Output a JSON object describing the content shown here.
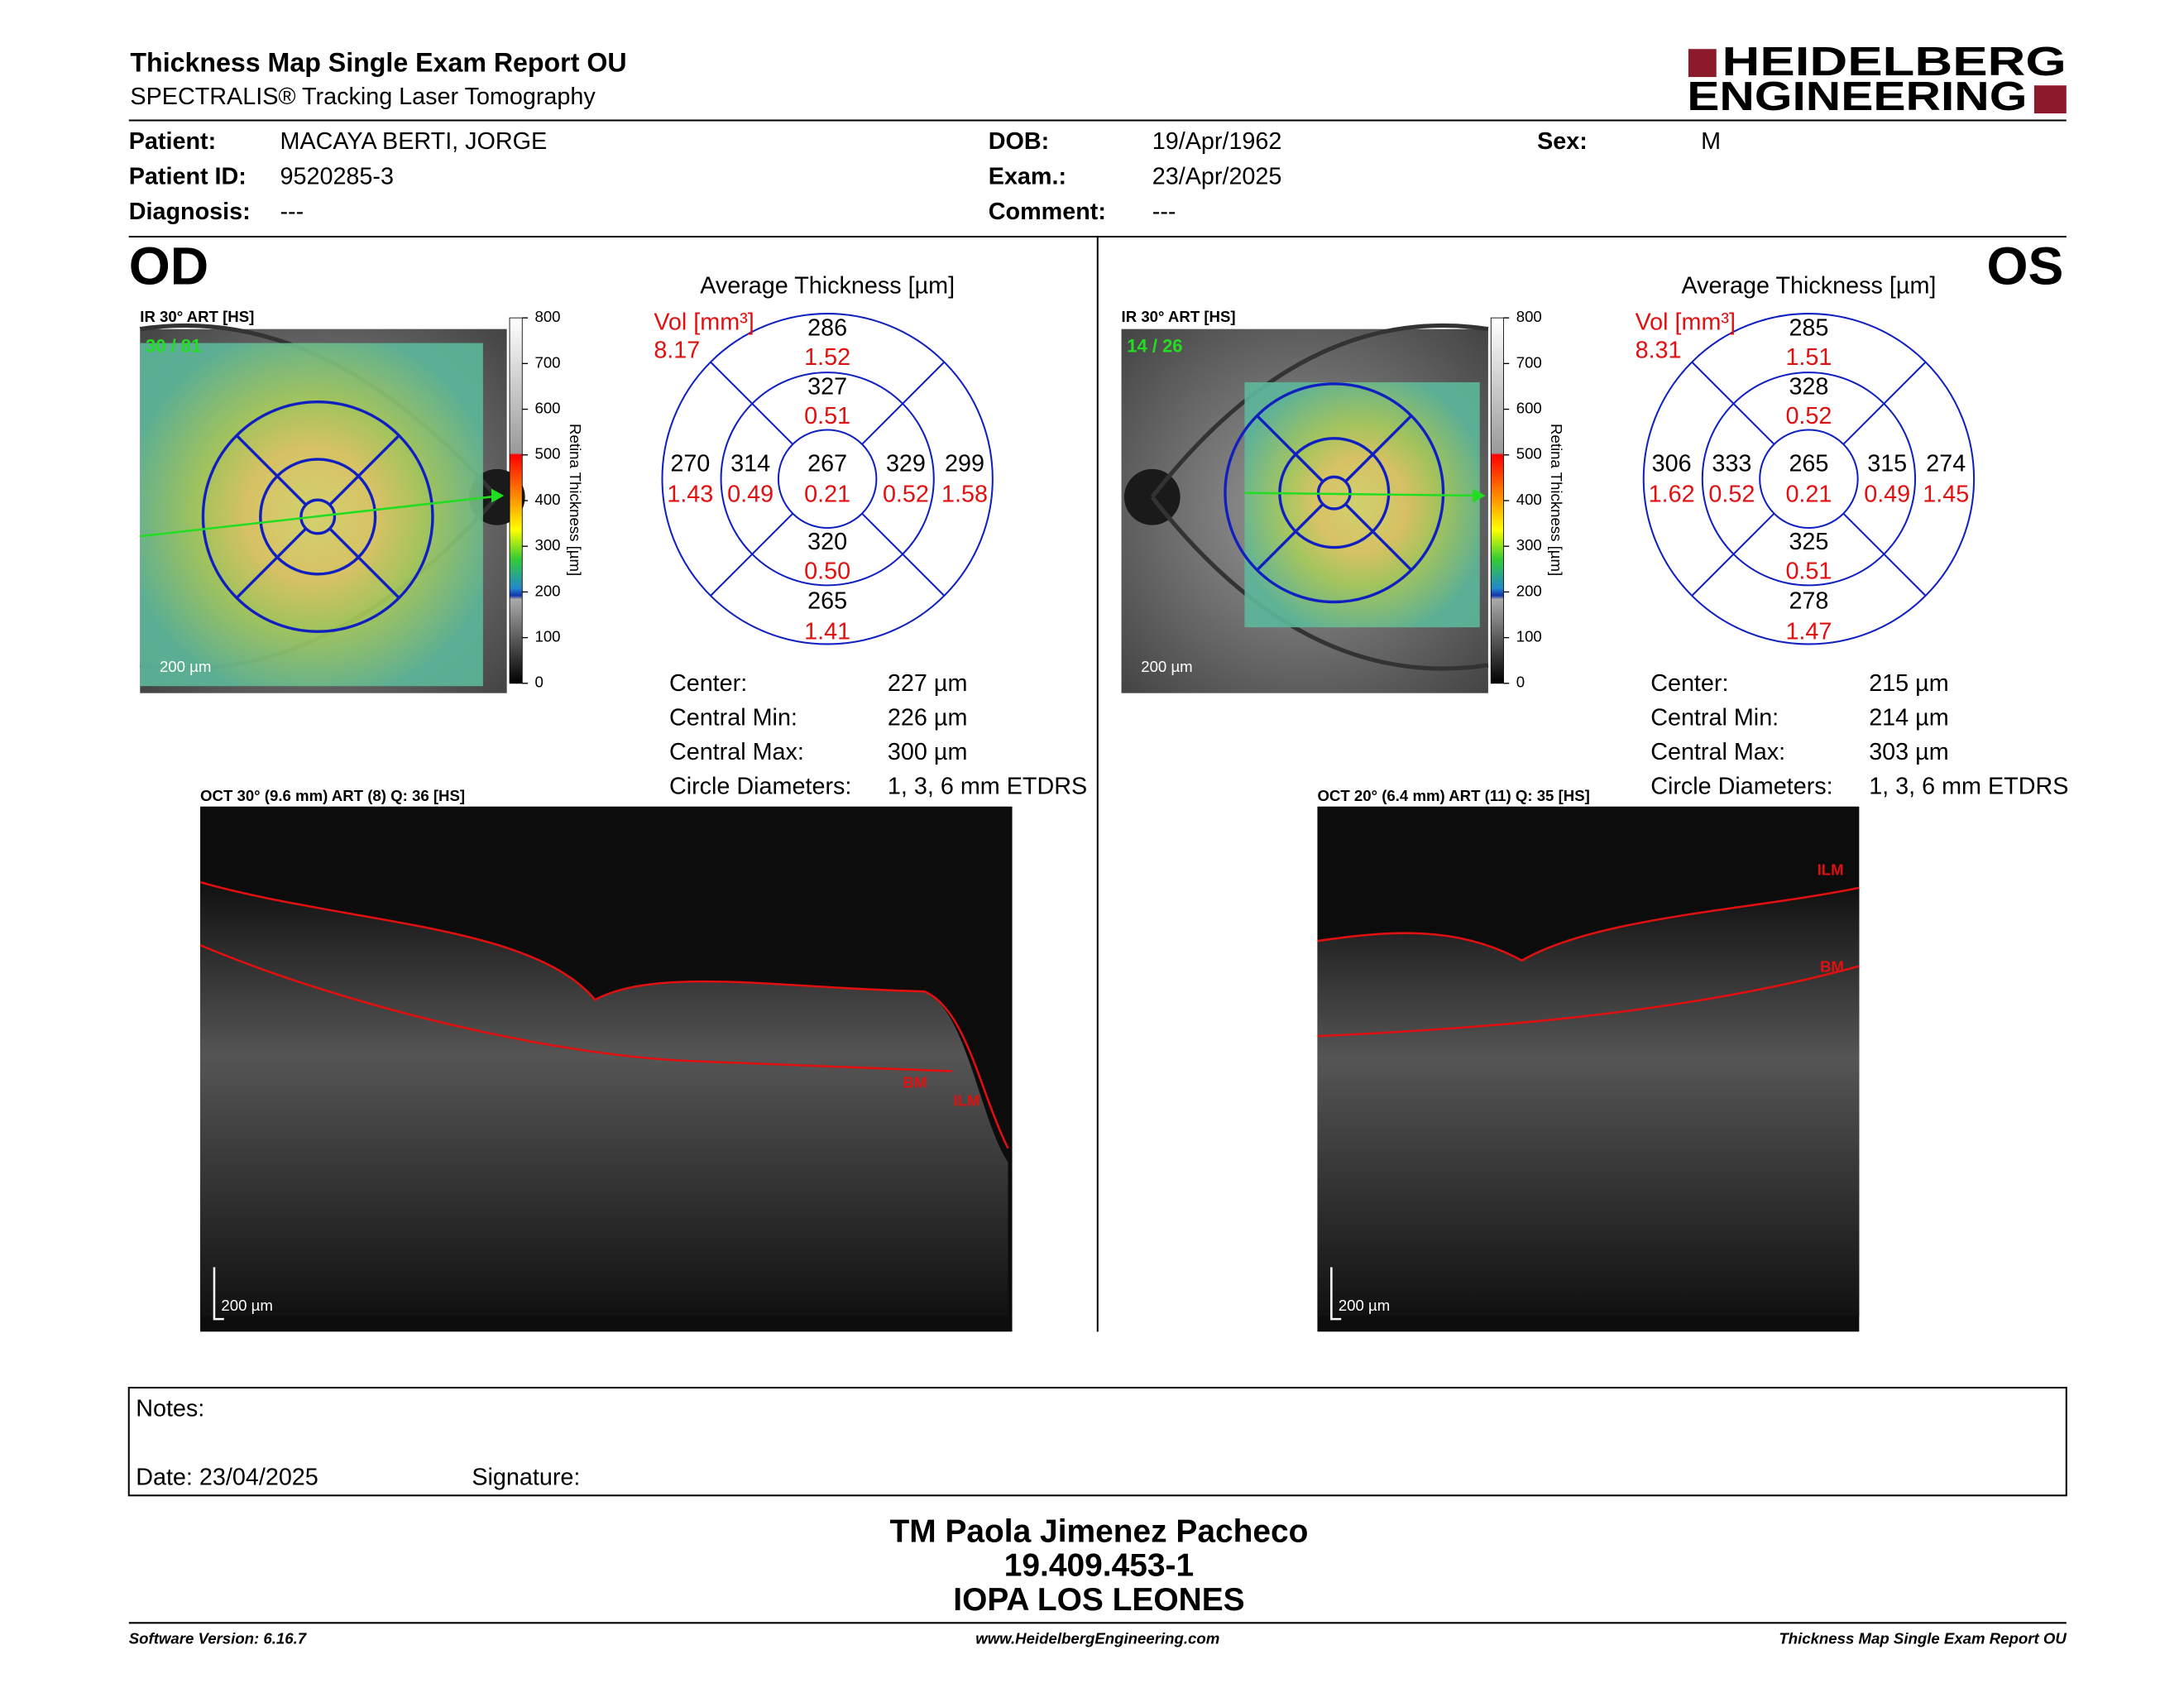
{
  "header": {
    "title": "Thickness Map Single Exam Report OU",
    "subtitle": "SPECTRALIS® Tracking Laser Tomography",
    "logo_top": "HEIDELBERG",
    "logo_bottom": "ENGINEERING"
  },
  "patient": {
    "fields": [
      {
        "label": "Patient:",
        "value": "MACAYA BERTI, JORGE"
      },
      {
        "label": "Patient ID:",
        "value": "9520285-3"
      },
      {
        "label": "Diagnosis:",
        "value": "---"
      },
      {
        "label": "DOB:",
        "value": "19/Apr/1962"
      },
      {
        "label": "Exam.:",
        "value": "23/Apr/2025"
      },
      {
        "label": "Comment:",
        "value": "---"
      },
      {
        "label": "Sex:",
        "value": "M"
      }
    ]
  },
  "eyes": [
    {
      "label": "OD",
      "ir_label": "IR 30° ART [HS]",
      "frames": "30 / 81",
      "ir_scale": "200 µm",
      "colorbar_ticks": [
        "800",
        "700",
        "600",
        "500",
        "400",
        "300",
        "200",
        "100",
        "0"
      ],
      "colorbar_label": "Retina Thickness [µm]",
      "avg_title": "Average Thickness [µm]",
      "vol_label": "Vol [mm³]",
      "vol_total": "8.17",
      "sectors": {
        "top_outer": {
          "thickness": "286",
          "volume": "1.52"
        },
        "top_inner": {
          "thickness": "327",
          "volume": "0.51"
        },
        "left_outer": {
          "thickness": "270",
          "volume": "1.43"
        },
        "left_inner": {
          "thickness": "314",
          "volume": "0.49"
        },
        "center": {
          "thickness": "267",
          "volume": "0.21"
        },
        "right_inner": {
          "thickness": "329",
          "volume": "0.52"
        },
        "right_outer": {
          "thickness": "299",
          "volume": "1.58"
        },
        "bottom_inner": {
          "thickness": "320",
          "volume": "0.50"
        },
        "bottom_outer": {
          "thickness": "265",
          "volume": "1.41"
        }
      },
      "stats": [
        {
          "label": "Center:",
          "value": "227 µm"
        },
        {
          "label": "Central Min:",
          "value": "226 µm"
        },
        {
          "label": "Central Max:",
          "value": "300 µm"
        },
        {
          "label": "Circle Diameters:",
          "value": "1, 3, 6 mm ETDRS"
        }
      ],
      "oct_label": "OCT 30° (9.6 mm) ART (8) Q: 36 [HS]",
      "oct_scale": "200 µm",
      "ilm": "ILM",
      "bm": "BM"
    },
    {
      "label": "OS",
      "ir_label": "IR 30° ART [HS]",
      "frames": "14 / 26",
      "ir_scale": "200 µm",
      "colorbar_ticks": [
        "800",
        "700",
        "600",
        "500",
        "400",
        "300",
        "200",
        "100",
        "0"
      ],
      "colorbar_label": "Retina Thickness [µm]",
      "avg_title": "Average Thickness [µm]",
      "vol_label": "Vol [mm³]",
      "vol_total": "8.31",
      "sectors": {
        "top_outer": {
          "thickness": "285",
          "volume": "1.51"
        },
        "top_inner": {
          "thickness": "328",
          "volume": "0.52"
        },
        "left_outer": {
          "thickness": "306",
          "volume": "1.62"
        },
        "left_inner": {
          "thickness": "333",
          "volume": "0.52"
        },
        "center": {
          "thickness": "265",
          "volume": "0.21"
        },
        "right_inner": {
          "thickness": "315",
          "volume": "0.49"
        },
        "right_outer": {
          "thickness": "274",
          "volume": "1.45"
        },
        "bottom_inner": {
          "thickness": "325",
          "volume": "0.51"
        },
        "bottom_outer": {
          "thickness": "278",
          "volume": "1.47"
        }
      },
      "stats": [
        {
          "label": "Center:",
          "value": "215 µm"
        },
        {
          "label": "Central Min:",
          "value": "214 µm"
        },
        {
          "label": "Central Max:",
          "value": "303 µm"
        },
        {
          "label": "Circle Diameters:",
          "value": "1, 3, 6 mm ETDRS"
        }
      ],
      "oct_label": "OCT 20° (6.4 mm) ART (11) Q: 35 [HS]",
      "oct_scale": "200 µm",
      "ilm": "ILM",
      "bm": "BM"
    }
  ],
  "notes": {
    "label": "Notes:",
    "date": "Date: 23/04/2025",
    "signature": "Signature:"
  },
  "stamp": [
    "TM Paola Jimenez Pacheco",
    "19.409.453-1",
    "IOPA LOS LEONES"
  ],
  "footer": {
    "left": "Software Version: 6.16.7",
    "center": "www.HeidelbergEngineering.com",
    "right": "Thickness Map Single Exam Report OU"
  }
}
